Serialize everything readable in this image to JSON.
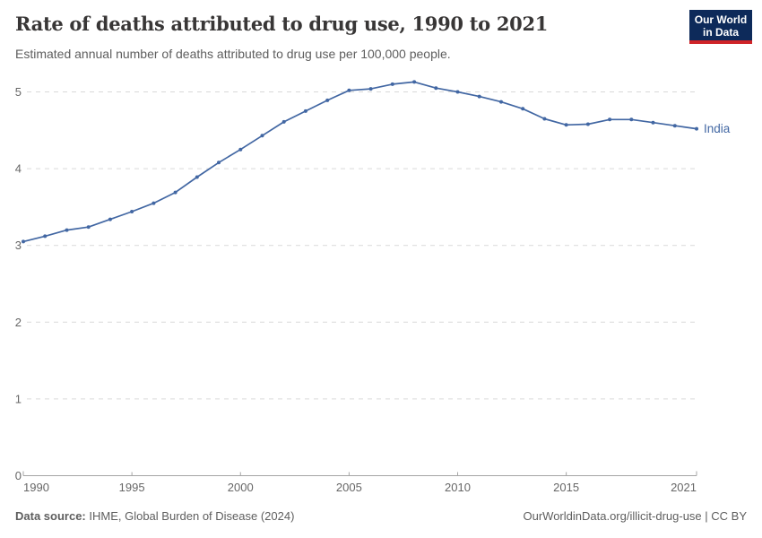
{
  "header": {
    "title": "Rate of deaths attributed to drug use, 1990 to 2021",
    "subtitle": "Estimated annual number of deaths attributed to drug use per 100,000 people.",
    "logo": {
      "line1": "Our World",
      "line2": "in Data"
    }
  },
  "chart_data": {
    "type": "line",
    "title": "Rate of deaths attributed to drug use, 1990 to 2021",
    "subtitle": "Estimated annual number of deaths attributed to drug use per 100,000 people.",
    "xlabel": "",
    "ylabel": "",
    "x_range": [
      1990,
      2021
    ],
    "ylim": [
      0,
      5.3
    ],
    "yticks": [
      0,
      1,
      2,
      3,
      4,
      5
    ],
    "xticks": [
      1990,
      1995,
      2000,
      2005,
      2010,
      2015,
      2021
    ],
    "grid": "horizontal-dashed",
    "legend": "end-of-line-label",
    "x": [
      1990,
      1991,
      1992,
      1993,
      1994,
      1995,
      1996,
      1997,
      1998,
      1999,
      2000,
      2001,
      2002,
      2003,
      2004,
      2005,
      2006,
      2007,
      2008,
      2009,
      2010,
      2011,
      2012,
      2013,
      2014,
      2015,
      2016,
      2017,
      2018,
      2019,
      2020,
      2021
    ],
    "series": [
      {
        "name": "India",
        "color": "#4267a3",
        "values": [
          3.05,
          3.12,
          3.2,
          3.24,
          3.34,
          3.44,
          3.55,
          3.69,
          3.89,
          4.08,
          4.25,
          4.43,
          4.61,
          4.75,
          4.89,
          5.02,
          5.04,
          5.1,
          5.13,
          5.05,
          5.0,
          4.94,
          4.87,
          4.78,
          4.65,
          4.57,
          4.58,
          4.64,
          4.64,
          4.6,
          4.56,
          4.52
        ]
      }
    ]
  },
  "footer": {
    "source_label": "Data source:",
    "source_value": "IHME, Global Burden of Disease (2024)",
    "attribution": "OurWorldinData.org/illicit-drug-use | CC BY"
  },
  "colors": {
    "line": "#4267a3",
    "grid": "#d9d9d9",
    "axis": "#a5a5a5",
    "tick_label": "#666666",
    "title": "#383636",
    "subtitle": "#5e5e5e",
    "footer_text": "#5e5e5e",
    "logo_bg": "#0d2a5a",
    "logo_accent": "#cf2428"
  }
}
